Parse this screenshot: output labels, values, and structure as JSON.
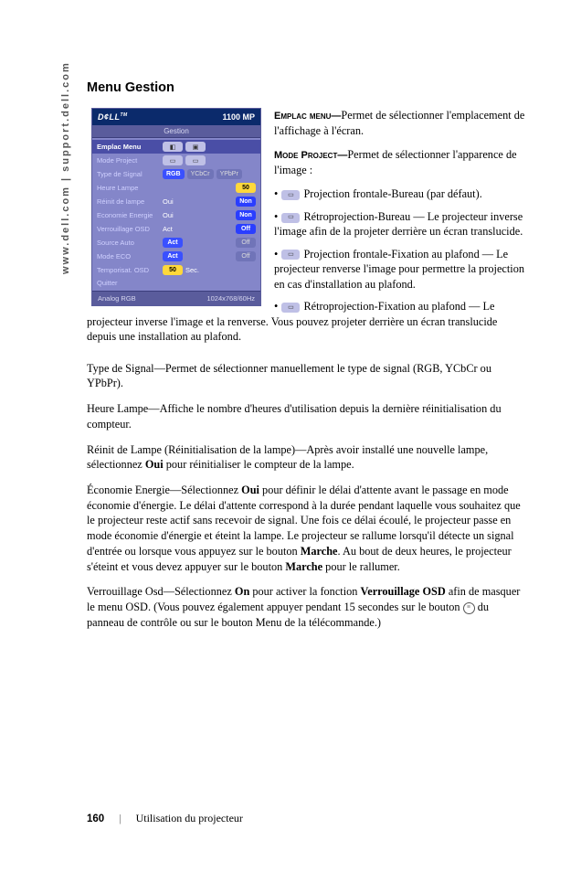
{
  "sidebar_url": "www.dell.com | support.dell.com",
  "heading": "Menu Gestion",
  "osd": {
    "logo": "D¢LL",
    "logo_tm": "TM",
    "model": "1100 MP",
    "tab": "Gestion",
    "rows": {
      "emplac": {
        "label": "Emplac Menu"
      },
      "mode": {
        "label": "Mode Project"
      },
      "signal": {
        "label": "Type de Signal",
        "opts": [
          "RGB",
          "YCbCr",
          "YPbPr"
        ],
        "active": 0
      },
      "heure": {
        "label": "Heure Lampe",
        "val": "50"
      },
      "reinit": {
        "label": "Réinit de lampe",
        "a": "Oui",
        "b": "Non"
      },
      "eco": {
        "label": "Economie Energie",
        "a": "Oui",
        "b": "Non"
      },
      "verr": {
        "label": "Verrouillage OSD",
        "a": "Act",
        "b": "Off"
      },
      "src": {
        "label": "Source Auto",
        "a": "Act",
        "b": "Off"
      },
      "meco": {
        "label": "Mode ECO",
        "a": "Act",
        "b": "Off"
      },
      "temp": {
        "label": "Temporisat. OSD",
        "val": "50",
        "unit": "Sec."
      },
      "quit": {
        "label": "Quitter"
      }
    },
    "footer": {
      "l": "Analog RGB",
      "r": "1024x768/60Hz"
    }
  },
  "right": {
    "p1": {
      "lead": "Emplac menu—",
      "text": "Permet de sélectionner l'emplacement de l'affichage à l'écran."
    },
    "p2": {
      "lead": "Mode Project—",
      "text": "Permet de sélectionner l'apparence de l'image :"
    },
    "b1": "Projection frontale-Bureau (par défaut).",
    "b2": "Rétroprojection-Bureau — Le projecteur inverse l'image afin de la projeter derrière un écran translucide.",
    "b3": "Projection frontale-Fixation au plafond — Le projecteur renverse l'image pour permettre la projection en cas d'installation au plafond.",
    "b4": "Rétroprojection-Fixation au plafond — Le projecteur inverse l'image et la renverse. Vous pouvez projeter derrière un écran translucide depuis une installation au plafond."
  },
  "full": {
    "p1": {
      "lead": "Type de Signal—",
      "text": "Permet de sélectionner manuellement le type de signal (RGB, YCbCr ou YPbPr)."
    },
    "p2": {
      "lead": "Heure Lampe—",
      "text": "Affiche le nombre d'heures d'utilisation depuis la dernière réinitialisation du compteur."
    },
    "p3": {
      "lead": "Réinit de Lampe (Réinitialisation de la lampe)—",
      "t1": "Après avoir installé une nouvelle lampe, sélectionnez ",
      "bold": "Oui",
      "t2": " pour réinitialiser le compteur de la lampe."
    },
    "p4": {
      "lead": "Économie Energie—",
      "t1": "Sélectionnez ",
      "b1": "Oui",
      "t2": " pour définir le délai d'attente avant le passage en mode économie d'énergie. Le délai d'attente correspond à la durée pendant laquelle vous souhaitez que le projecteur reste actif sans recevoir de signal. Une fois ce délai écoulé, le projecteur passe en mode économie d'énergie et éteint la lampe. Le projecteur se rallume lorsqu'il détecte un signal d'entrée ou lorsque vous appuyez sur le bouton ",
      "b2": "Marche",
      "t3": ". Au bout de deux heures, le projecteur s'éteint et vous devez appuyer sur le bouton ",
      "b3": "Marche",
      "t4": " pour le rallumer."
    },
    "p5": {
      "lead": "Verrouillage Osd—",
      "t1": "Sélectionnez ",
      "b1": "On",
      "t2": " pour activer la fonction ",
      "b2": "Verrouillage OSD",
      "t3": " afin de masquer le menu OSD. (Vous pouvez également appuyer pendant 15 secondes sur le bouton ",
      "t4": " du panneau de contrôle ou sur le bouton Menu de la télécommande.)"
    }
  },
  "footer": {
    "page": "160",
    "section": "Utilisation du projecteur"
  }
}
